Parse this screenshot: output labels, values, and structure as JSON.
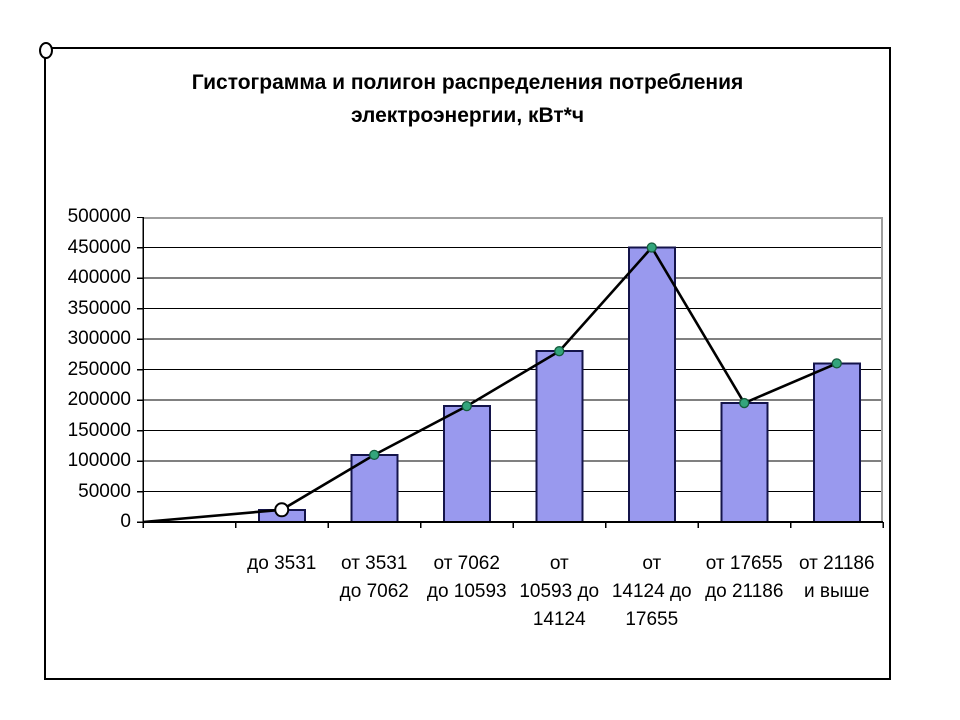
{
  "page": {
    "background": "#ffffff"
  },
  "chart_data": {
    "type": "bar",
    "subtype": "histogram with frequency polygon overlay",
    "title": "Гистограмма и полигон распределения потребления электроэнергии, кВт*ч",
    "title_lines": [
      "Гистограмма и полигон распределения потребления",
      "электроэнергии, кВт*ч"
    ],
    "categories": [
      "до 3531",
      "от 3531 до 7062",
      "от 7062 до 10593",
      "от 10593 до 14124",
      "от 14124 до 17655",
      "от 17655 до 21186",
      "от 21186 и выше"
    ],
    "category_label_lines": [
      [
        "до 3531"
      ],
      [
        "от 3531",
        "до 7062"
      ],
      [
        "от 7062",
        "до 10593"
      ],
      [
        "от",
        "10593 до",
        "14124"
      ],
      [
        "от",
        "14124 до",
        "17655"
      ],
      [
        "от 17655",
        "до 21186"
      ],
      [
        "от 21186",
        "и выше"
      ]
    ],
    "values": [
      20000,
      110000,
      190000,
      280000,
      450000,
      195000,
      260000
    ],
    "polygon_overlay": {
      "follows_bar_tops": true,
      "starts_at_plot_origin": true,
      "first_marker": "large white circle",
      "other_markers": "small green circles",
      "ends_at_last_bar": true
    },
    "xlabel": "",
    "ylabel": "",
    "ylim": [
      0,
      500000
    ],
    "yticks": [
      0,
      50000,
      100000,
      150000,
      200000,
      250000,
      300000,
      350000,
      400000,
      450000,
      500000
    ],
    "grid": "horizontal gridlines on",
    "legend": "none",
    "colors": {
      "bar_fill": "#9999ee",
      "bar_border": "#14144a",
      "line": "#000000",
      "marker_fill": "#33a57c",
      "marker_border": "#145c3c",
      "first_marker_fill": "#ffffff",
      "first_marker_border": "#000000",
      "gridline": "#000000",
      "plot_top_right_border": "#9e9e9e",
      "axis": "#000000",
      "frame_border": "#000000"
    }
  }
}
